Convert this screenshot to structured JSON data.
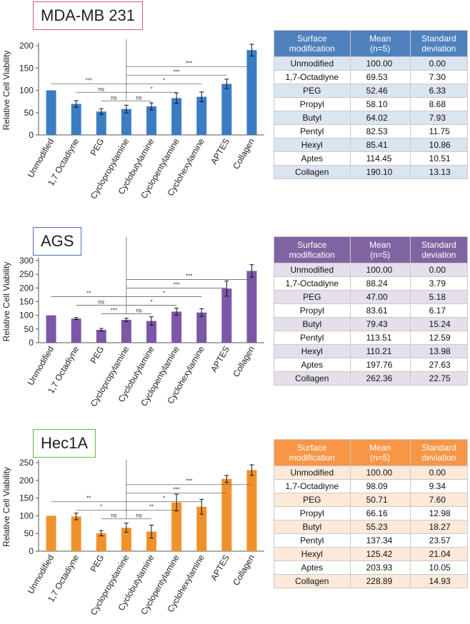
{
  "panels": [
    {
      "title": "MDA-MB 231",
      "title_border": "#e0508a",
      "bar_color": "#3b7dc4",
      "header_color": "#4f81bd",
      "row_alt": "#dbe5f1",
      "table_headers": [
        "Surface\nmodification",
        "Mean\n(n=5)",
        "Standard\ndeviation"
      ],
      "rows": [
        [
          "Unmodified",
          "100.00",
          "0.00"
        ],
        [
          "1,7-Octadiyne",
          "69.53",
          "7.30"
        ],
        [
          "PEG",
          "52.46",
          "6.33"
        ],
        [
          "Propyl",
          "58.10",
          "8.68"
        ],
        [
          "Butyl",
          "64.02",
          "7.93"
        ],
        [
          "Pentyl",
          "82.53",
          "11.75"
        ],
        [
          "Hexyl",
          "85.41",
          "10.86"
        ],
        [
          "Aptes",
          "114.45",
          "10.51"
        ],
        [
          "Collagen",
          "190.10",
          "13.13"
        ]
      ]
    },
    {
      "title": "AGS",
      "title_border": "#4a6fb5",
      "bar_color": "#7b57a8",
      "header_color": "#8064a2",
      "row_alt": "#e5dfec",
      "table_headers": [
        "Surface\nmodification",
        "Mean\n(n=5)",
        "Standard\ndeviation"
      ],
      "rows": [
        [
          "Unmodified",
          "100.00",
          "0.00"
        ],
        [
          "1,7-Octadiyne",
          "88.24",
          "3.79"
        ],
        [
          "PEG",
          "47.00",
          "5.18"
        ],
        [
          "Propyl",
          "83.61",
          "6.17"
        ],
        [
          "Butyl",
          "79.43",
          "15.24"
        ],
        [
          "Pentyl",
          "113.51",
          "12.59"
        ],
        [
          "Hexyl",
          "110.21",
          "13.98"
        ],
        [
          "Aptes",
          "197.76",
          "27.63"
        ],
        [
          "Collagen",
          "262.36",
          "22.75"
        ]
      ]
    },
    {
      "title": "Hec1A",
      "title_border": "#5cbf3a",
      "bar_color": "#f0922c",
      "header_color": "#f79646",
      "row_alt": "#fde9d9",
      "table_headers": [
        "Surface\nmodification",
        "Mean\n(n=5)",
        "Standard\ndeviation"
      ],
      "rows": [
        [
          "Unmodified",
          "100.00",
          "0.00"
        ],
        [
          "1,7-Octadiyne",
          "98.09",
          "9.34"
        ],
        [
          "PEG",
          "50.71",
          "7.60"
        ],
        [
          "Propyl",
          "66.16",
          "12.98"
        ],
        [
          "Butyl",
          "55.23",
          "18.27"
        ],
        [
          "Pentyl",
          "137.34",
          "23.57"
        ],
        [
          "Hexyl",
          "125.42",
          "21.04"
        ],
        [
          "Aptes",
          "203.93",
          "10.05"
        ],
        [
          "Collagen",
          "228.89",
          "14.93"
        ]
      ]
    }
  ],
  "chart_data": [
    {
      "type": "bar",
      "title": "MDA-MB 231",
      "ylabel": "Relative Cell Viability",
      "xlabel": "",
      "ylim": [
        0,
        200
      ],
      "yticks": [
        0,
        50,
        100,
        150,
        200
      ],
      "categories": [
        "Unmodified",
        "1,7 Octadiyne",
        "PEG",
        "Cyclopropylamine",
        "Cyclobutylamine",
        "Cyclopentylamine",
        "Cyclohexylamine",
        "APTES",
        "Collagen"
      ],
      "values": [
        100.0,
        69.53,
        52.46,
        58.1,
        64.02,
        82.53,
        85.41,
        114.45,
        190.1
      ],
      "errors": [
        0.0,
        7.3,
        6.33,
        8.68,
        7.93,
        11.75,
        10.86,
        10.51,
        13.13
      ],
      "significance": [
        {
          "from": 0,
          "to": 3,
          "label": "***"
        },
        {
          "from": 1,
          "to": 3,
          "label": "ns"
        },
        {
          "from": 2,
          "to": 3,
          "label": "ns"
        },
        {
          "from": 3,
          "to": 4,
          "label": "ns"
        },
        {
          "from": 3,
          "to": 5,
          "label": "*"
        },
        {
          "from": 3,
          "to": 6,
          "label": "*"
        },
        {
          "from": 3,
          "to": 7,
          "label": "***"
        },
        {
          "from": 3,
          "to": 8,
          "label": "***"
        }
      ]
    },
    {
      "type": "bar",
      "title": "AGS",
      "ylabel": "Relative Cell Viability",
      "xlabel": "",
      "ylim": [
        0,
        300
      ],
      "yticks": [
        0,
        50,
        100,
        150,
        200,
        250,
        300
      ],
      "categories": [
        "Unmodified",
        "1,7 Octadiyne",
        "PEG",
        "Cyclopropylamine",
        "Cyclobutylamine",
        "Cyclopentylamine",
        "Cyclohexylamine",
        "APTES",
        "Collagen"
      ],
      "values": [
        100.0,
        88.24,
        47.0,
        83.61,
        79.43,
        113.51,
        110.21,
        197.76,
        262.36
      ],
      "errors": [
        0.0,
        3.79,
        5.18,
        6.17,
        15.24,
        12.59,
        13.98,
        27.63,
        22.75
      ],
      "significance": [
        {
          "from": 0,
          "to": 3,
          "label": "**"
        },
        {
          "from": 1,
          "to": 3,
          "label": "ns"
        },
        {
          "from": 2,
          "to": 3,
          "label": "***"
        },
        {
          "from": 3,
          "to": 4,
          "label": "ns"
        },
        {
          "from": 3,
          "to": 5,
          "label": "*"
        },
        {
          "from": 3,
          "to": 6,
          "label": "*"
        },
        {
          "from": 3,
          "to": 7,
          "label": "***"
        },
        {
          "from": 3,
          "to": 8,
          "label": "***"
        }
      ]
    },
    {
      "type": "bar",
      "title": "Hec1A",
      "ylabel": "Relative Cell Viability",
      "xlabel": "",
      "ylim": [
        0,
        250
      ],
      "yticks": [
        0,
        50,
        100,
        150,
        200,
        250
      ],
      "categories": [
        "Unmodified",
        "1,7 Octadiyne",
        "PEG",
        "Cyclopropylamine",
        "Cyclobutylamine",
        "Cyclopentylamine",
        "Cyclohexylamine",
        "APTES",
        "Collagen"
      ],
      "values": [
        100.0,
        98.09,
        50.71,
        66.16,
        55.23,
        137.34,
        125.42,
        203.93,
        228.89
      ],
      "errors": [
        0.0,
        9.34,
        7.6,
        12.98,
        18.27,
        23.57,
        21.04,
        10.05,
        14.93
      ],
      "significance": [
        {
          "from": 0,
          "to": 3,
          "label": "**"
        },
        {
          "from": 1,
          "to": 3,
          "label": "*"
        },
        {
          "from": 2,
          "to": 3,
          "label": "ns"
        },
        {
          "from": 3,
          "to": 4,
          "label": "ns"
        },
        {
          "from": 3,
          "to": 5,
          "label": "**"
        },
        {
          "from": 3,
          "to": 6,
          "label": "*"
        },
        {
          "from": 3,
          "to": 7,
          "label": "***"
        },
        {
          "from": 3,
          "to": 8,
          "label": "***"
        }
      ]
    }
  ]
}
